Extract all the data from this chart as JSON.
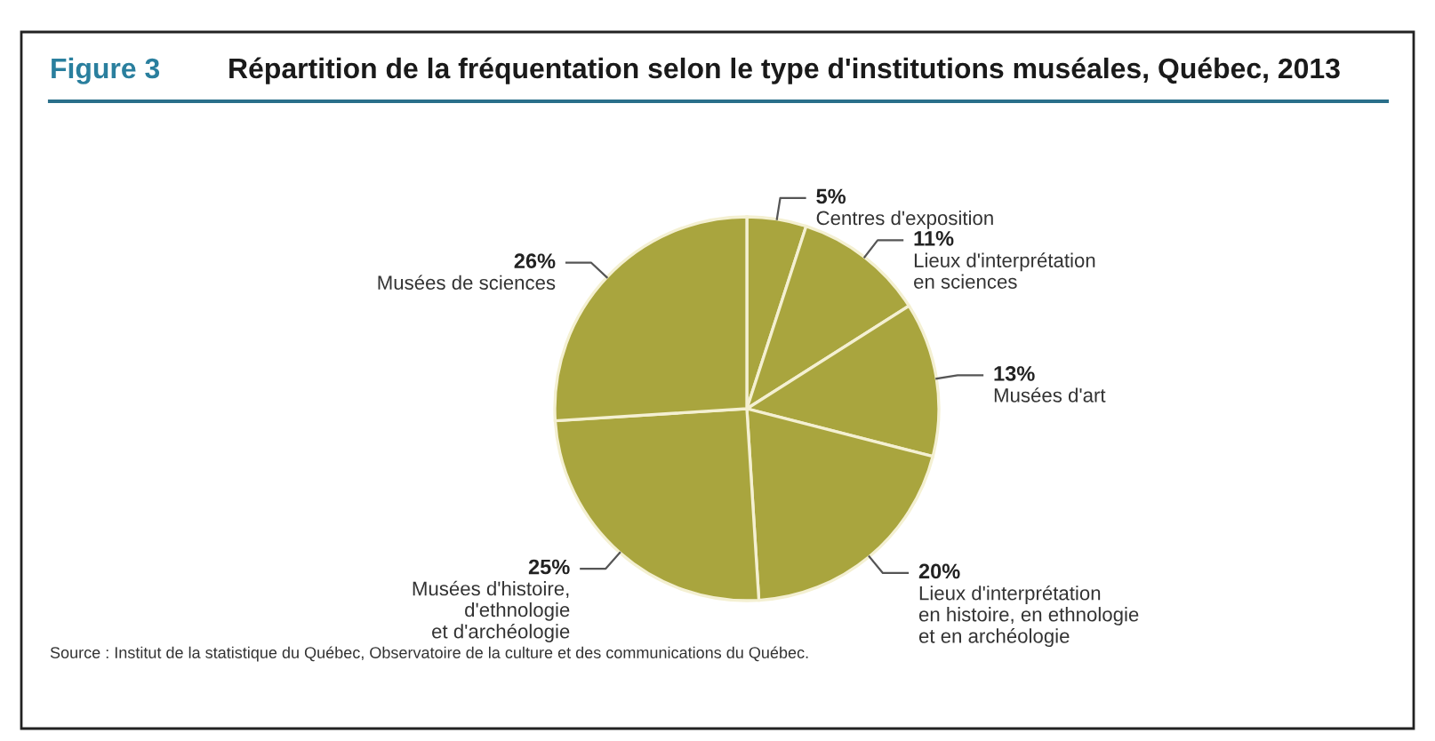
{
  "chart_data": {
    "type": "pie",
    "title": "Répartition de la fréquentation selon le type d'institutions muséales, Québec, 2013",
    "categories": [
      "Centres d'exposition",
      "Lieux d'interprétation\nen sciences",
      "Musées d'art",
      "Lieux d'interprétation\nen histoire, en ethnologie\net en archéologie",
      "Musées d'histoire,\nd'ethnologie\net d'archéologie",
      "Musées de sciences"
    ],
    "values": [
      5,
      11,
      13,
      20,
      25,
      26
    ],
    "value_labels": [
      "5%",
      "11%",
      "13%",
      "20%",
      "25%",
      "26%"
    ],
    "colors": [
      "#a9a53e",
      "#a9a53e",
      "#a9a53e",
      "#a9a53e",
      "#a9a53e",
      "#a9a53e"
    ],
    "annotations": [
      "Figure 3",
      "Source : Institut de la statistique du Québec, Observatoire de la culture et des communications du Québec."
    ]
  }
}
